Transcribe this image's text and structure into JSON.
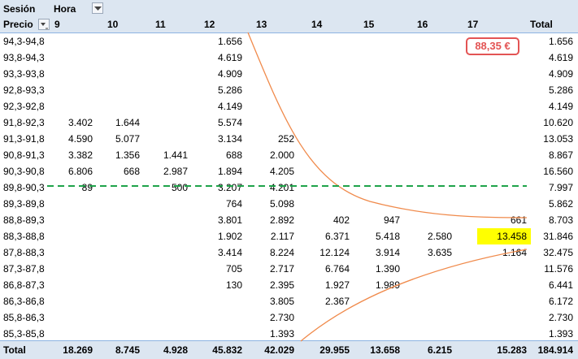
{
  "header": {
    "session_label": "Sesión",
    "hour_label": "Hora",
    "price_label": "Precio",
    "columns": [
      "9",
      "10",
      "11",
      "12",
      "13",
      "14",
      "15",
      "16",
      "17"
    ],
    "total_label": "Total"
  },
  "rows": [
    {
      "label": "94,3-94,8",
      "cells": [
        "",
        "",
        "",
        "1.656",
        "",
        "",
        "",
        "",
        ""
      ],
      "total": "1.656"
    },
    {
      "label": "93,8-94,3",
      "cells": [
        "",
        "",
        "",
        "4.619",
        "",
        "",
        "",
        "",
        ""
      ],
      "total": "4.619"
    },
    {
      "label": "93,3-93,8",
      "cells": [
        "",
        "",
        "",
        "4.909",
        "",
        "",
        "",
        "",
        ""
      ],
      "total": "4.909"
    },
    {
      "label": "92,8-93,3",
      "cells": [
        "",
        "",
        "",
        "5.286",
        "",
        "",
        "",
        "",
        ""
      ],
      "total": "5.286"
    },
    {
      "label": "92,3-92,8",
      "cells": [
        "",
        "",
        "",
        "4.149",
        "",
        "",
        "",
        "",
        ""
      ],
      "total": "4.149"
    },
    {
      "label": "91,8-92,3",
      "cells": [
        "3.402",
        "1.644",
        "",
        "5.574",
        "",
        "",
        "",
        "",
        ""
      ],
      "total": "10.620"
    },
    {
      "label": "91,3-91,8",
      "cells": [
        "4.590",
        "5.077",
        "",
        "3.134",
        "252",
        "",
        "",
        "",
        ""
      ],
      "total": "13.053"
    },
    {
      "label": "90,8-91,3",
      "cells": [
        "3.382",
        "1.356",
        "1.441",
        "688",
        "2.000",
        "",
        "",
        "",
        ""
      ],
      "total": "8.867"
    },
    {
      "label": "90,3-90,8",
      "cells": [
        "6.806",
        "668",
        "2.987",
        "1.894",
        "4.205",
        "",
        "",
        "",
        ""
      ],
      "total": "16.560"
    },
    {
      "label": "89,8-90,3",
      "cells": [
        "89",
        "",
        "500",
        "3.207",
        "4.201",
        "",
        "",
        "",
        ""
      ],
      "total": "7.997"
    },
    {
      "label": "89,3-89,8",
      "cells": [
        "",
        "",
        "",
        "764",
        "5.098",
        "",
        "",
        "",
        ""
      ],
      "total": "5.862"
    },
    {
      "label": "88,8-89,3",
      "cells": [
        "",
        "",
        "",
        "3.801",
        "2.892",
        "402",
        "947",
        "",
        "661"
      ],
      "total": "8.703"
    },
    {
      "label": "88,3-88,8",
      "cells": [
        "",
        "",
        "",
        "1.902",
        "2.117",
        "6.371",
        "5.418",
        "2.580",
        "13.458"
      ],
      "total": "31.846"
    },
    {
      "label": "87,8-88,3",
      "cells": [
        "",
        "",
        "",
        "3.414",
        "8.224",
        "12.124",
        "3.914",
        "3.635",
        "1.164"
      ],
      "total": "32.475"
    },
    {
      "label": "87,3-87,8",
      "cells": [
        "",
        "",
        "",
        "705",
        "2.717",
        "6.764",
        "1.390",
        "",
        ""
      ],
      "total": "11.576"
    },
    {
      "label": "86,8-87,3",
      "cells": [
        "",
        "",
        "",
        "130",
        "2.395",
        "1.927",
        "1.989",
        "",
        ""
      ],
      "total": "6.441"
    },
    {
      "label": "86,3-86,8",
      "cells": [
        "",
        "",
        "",
        "",
        "3.805",
        "2.367",
        "",
        "",
        ""
      ],
      "total": "6.172"
    },
    {
      "label": "85,8-86,3",
      "cells": [
        "",
        "",
        "",
        "",
        "2.730",
        "",
        "",
        "",
        ""
      ],
      "total": "2.730"
    },
    {
      "label": "85,3-85,8",
      "cells": [
        "",
        "",
        "",
        "",
        "1.393",
        "",
        "",
        "",
        ""
      ],
      "total": "1.393"
    }
  ],
  "totals": {
    "label": "Total",
    "cells": [
      "18.269",
      "8.745",
      "4.928",
      "45.832",
      "42.029",
      "29.955",
      "13.658",
      "6.215",
      "15.283"
    ],
    "grand": "184.914"
  },
  "annotation": {
    "price": "88,35 €",
    "color": "#e35454"
  },
  "highlight": {
    "row": 12,
    "col": 8,
    "color": "#ffff00"
  },
  "colors": {
    "header_bg": "#dce6f1",
    "curve": "#f08a4b",
    "dashed_line": "#1fa34a"
  }
}
